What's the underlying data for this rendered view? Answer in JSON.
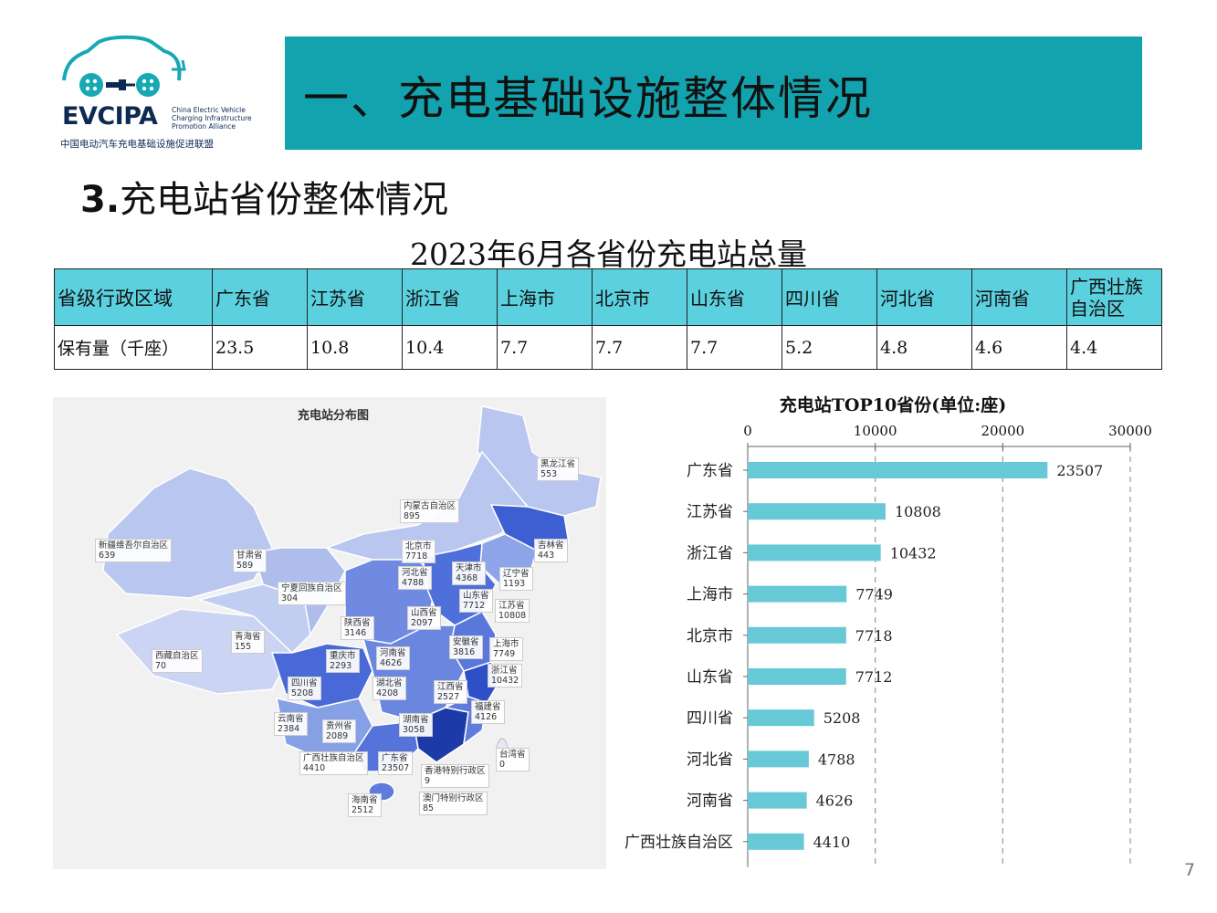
{
  "logo": {
    "name": "EVCIPA",
    "en_lines": [
      "China Electric Vehicle",
      "Charging Infrastructure",
      "Promotion Alliance"
    ],
    "cn": "中国电动汽车充电基础设施促进联盟"
  },
  "banner": {
    "title": "一、充电基础设施整体情况"
  },
  "section": {
    "number": "3.",
    "title": "充电站省份整体情况"
  },
  "table": {
    "title": "2023年6月各省份充电站总量",
    "row_header_1": "省级行政区域",
    "row_header_2": "保有量（千座）",
    "provinces": [
      "广东省",
      "江苏省",
      "浙江省",
      "上海市",
      "北京市",
      "山东省",
      "四川省",
      "河北省",
      "河南省",
      "广西壮族自治区"
    ],
    "values": [
      "23.5",
      "10.8",
      "10.4",
      "7.7",
      "7.7",
      "7.7",
      "5.2",
      "4.8",
      "4.6",
      "4.4"
    ]
  },
  "map": {
    "title": "充电站分布图",
    "labels": [
      {
        "name": "黑龙江省",
        "value": "553"
      },
      {
        "name": "吉林省",
        "value": "443"
      },
      {
        "name": "辽宁省",
        "value": "1193"
      },
      {
        "name": "内蒙古自治区",
        "value": "895"
      },
      {
        "name": "新疆维吾尔自治区",
        "value": "639"
      },
      {
        "name": "甘肃省",
        "value": "589"
      },
      {
        "name": "北京市",
        "value": "7718"
      },
      {
        "name": "天津市",
        "value": "4368"
      },
      {
        "name": "河北省",
        "value": "4788"
      },
      {
        "name": "宁夏回族自治区",
        "value": "304"
      },
      {
        "name": "山东省",
        "value": "7712"
      },
      {
        "name": "山西省",
        "value": "2097"
      },
      {
        "name": "江苏省",
        "value": "10808"
      },
      {
        "name": "陕西省",
        "value": "3146"
      },
      {
        "name": "青海省",
        "value": "155"
      },
      {
        "name": "上海市",
        "value": "7749"
      },
      {
        "name": "安徽省",
        "value": "3816"
      },
      {
        "name": "西藏自治区",
        "value": "70"
      },
      {
        "name": "重庆市",
        "value": "2293"
      },
      {
        "name": "河南省",
        "value": "4626"
      },
      {
        "name": "浙江省",
        "value": "10432"
      },
      {
        "name": "四川省",
        "value": "5208"
      },
      {
        "name": "湖北省",
        "value": "4208"
      },
      {
        "name": "江西省",
        "value": "2527"
      },
      {
        "name": "福建省",
        "value": "4126"
      },
      {
        "name": "云南省",
        "value": "2384"
      },
      {
        "name": "贵州省",
        "value": "2089"
      },
      {
        "name": "湖南省",
        "value": "3058"
      },
      {
        "name": "台湾省",
        "value": "0"
      },
      {
        "name": "广西壮族自治区",
        "value": "4410"
      },
      {
        "name": "广东省",
        "value": "23507"
      },
      {
        "name": "香港特别行政区",
        "value": "9"
      },
      {
        "name": "海南省",
        "value": "2512"
      },
      {
        "name": "澳门特别行政区",
        "value": "85"
      }
    ]
  },
  "chart_data": {
    "type": "bar",
    "orientation": "horizontal",
    "title": "充电站TOP10省份(单位:座)",
    "categories": [
      "广东省",
      "江苏省",
      "浙江省",
      "上海市",
      "北京市",
      "山东省",
      "四川省",
      "河北省",
      "河南省",
      "广西壮族自治区"
    ],
    "values": [
      23507,
      10808,
      10432,
      7749,
      7718,
      7712,
      5208,
      4788,
      4626,
      4410
    ],
    "xlim": [
      0,
      30000
    ],
    "xticks": [
      0,
      10000,
      20000,
      30000
    ],
    "grid": "vertical dashed",
    "bar_color": "#67c9d6",
    "data_labels": true
  },
  "page_number": "7",
  "colors": {
    "banner": "#12a3ae",
    "table_header": "#5bd0de",
    "bar": "#67c9d6"
  }
}
